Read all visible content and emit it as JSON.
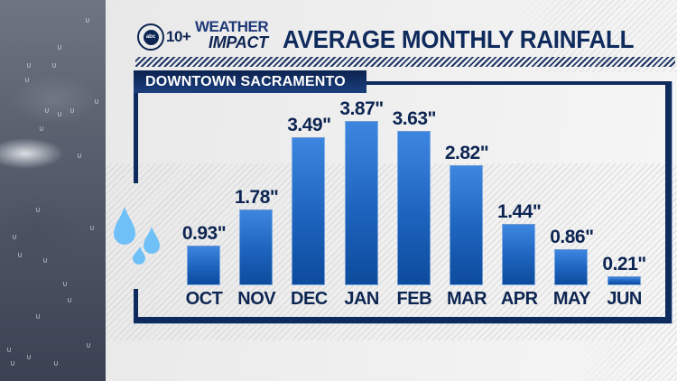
{
  "header": {
    "logo": {
      "badge": "abc",
      "channel": "10+",
      "line1": "WEATHER",
      "line2": "IMPACT"
    },
    "title": "AVERAGE MONTHLY RAINFALL"
  },
  "location_tab": "DOWNTOWN SACRAMENTO",
  "colors": {
    "navy": "#0f2a5c",
    "bar_top": "#3d86e0",
    "bar_bottom": "#0d4b9c",
    "raindrop": "#6fc0f7",
    "background": "#ececec"
  },
  "icons": {
    "raindrops": "raindrop-icon"
  },
  "chart_data": {
    "type": "bar",
    "title": "AVERAGE MONTHLY RAINFALL",
    "subtitle": "DOWNTOWN SACRAMENTO",
    "categories": [
      "OCT",
      "NOV",
      "DEC",
      "JAN",
      "FEB",
      "MAR",
      "APR",
      "MAY",
      "JUN"
    ],
    "values": [
      0.93,
      1.78,
      3.49,
      3.87,
      3.63,
      2.82,
      1.44,
      0.86,
      0.21
    ],
    "value_labels": [
      "0.93\"",
      "1.78\"",
      "3.49\"",
      "3.87\"",
      "3.63\"",
      "2.82\"",
      "1.44\"",
      "0.86\"",
      "0.21\""
    ],
    "unit": "inches",
    "xlabel": "",
    "ylabel": "",
    "ylim": [
      0,
      3.87
    ],
    "grid": false,
    "legend": "none"
  }
}
